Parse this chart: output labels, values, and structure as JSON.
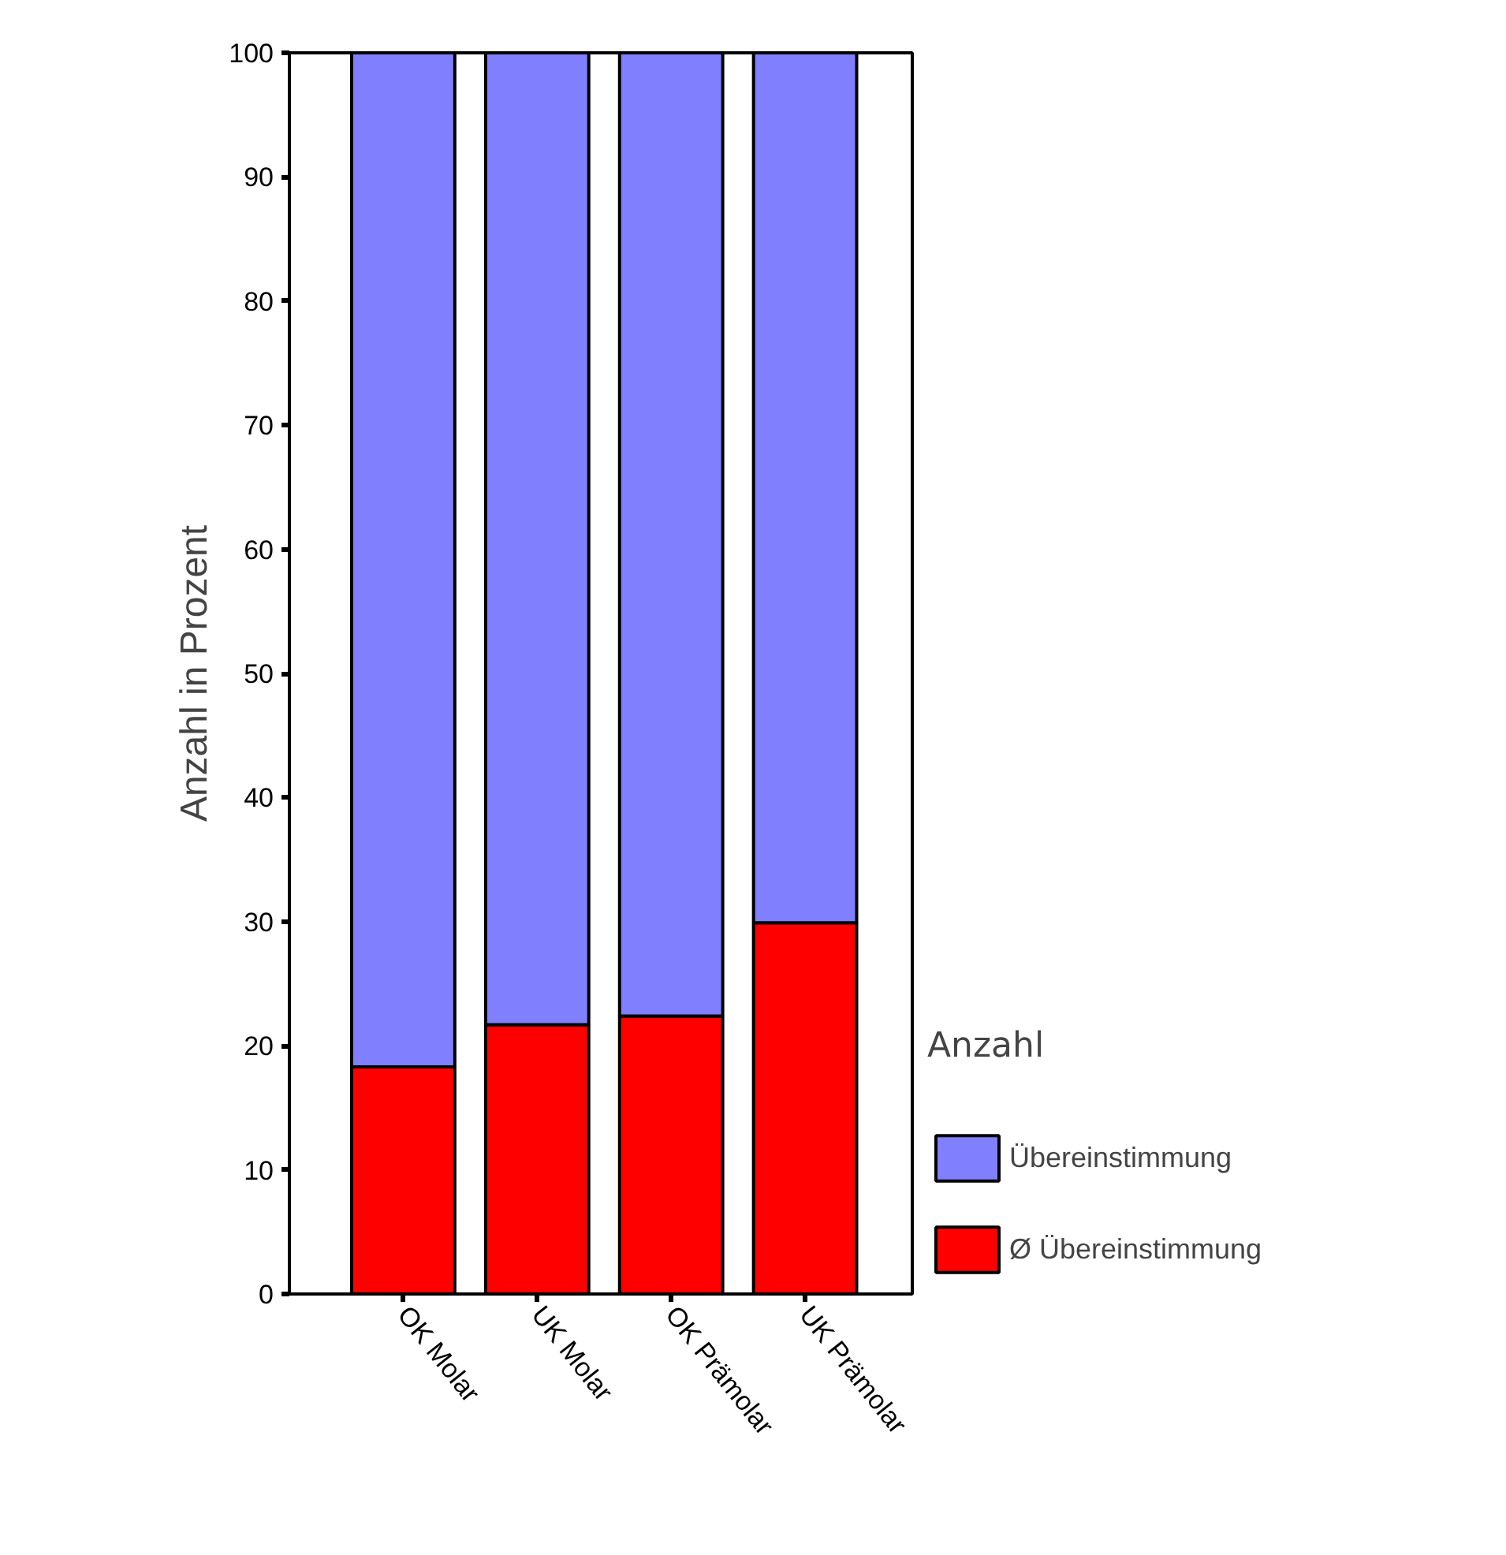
{
  "chart_data": {
    "type": "bar",
    "stacked": true,
    "ylabel": "Anzahl in Prozent",
    "legend_title": "Anzahl",
    "legend": "right",
    "grid": false,
    "categories": [
      "OK Molar",
      "UK Molar",
      "OK Prämolar",
      "UK Prämolar"
    ],
    "series": [
      {
        "name": "Ø Übereinstimmung",
        "color": "#ff0000",
        "values": [
          18.3,
          21.7,
          22.4,
          29.9
        ]
      },
      {
        "name": "Übereinstimmung",
        "color": "#8080ff",
        "values": [
          81.7,
          78.3,
          77.6,
          70.1
        ]
      }
    ],
    "ylim": [
      0,
      100
    ],
    "yticks": [
      0,
      10,
      20,
      30,
      40,
      50,
      60,
      70,
      80,
      90,
      100
    ]
  }
}
